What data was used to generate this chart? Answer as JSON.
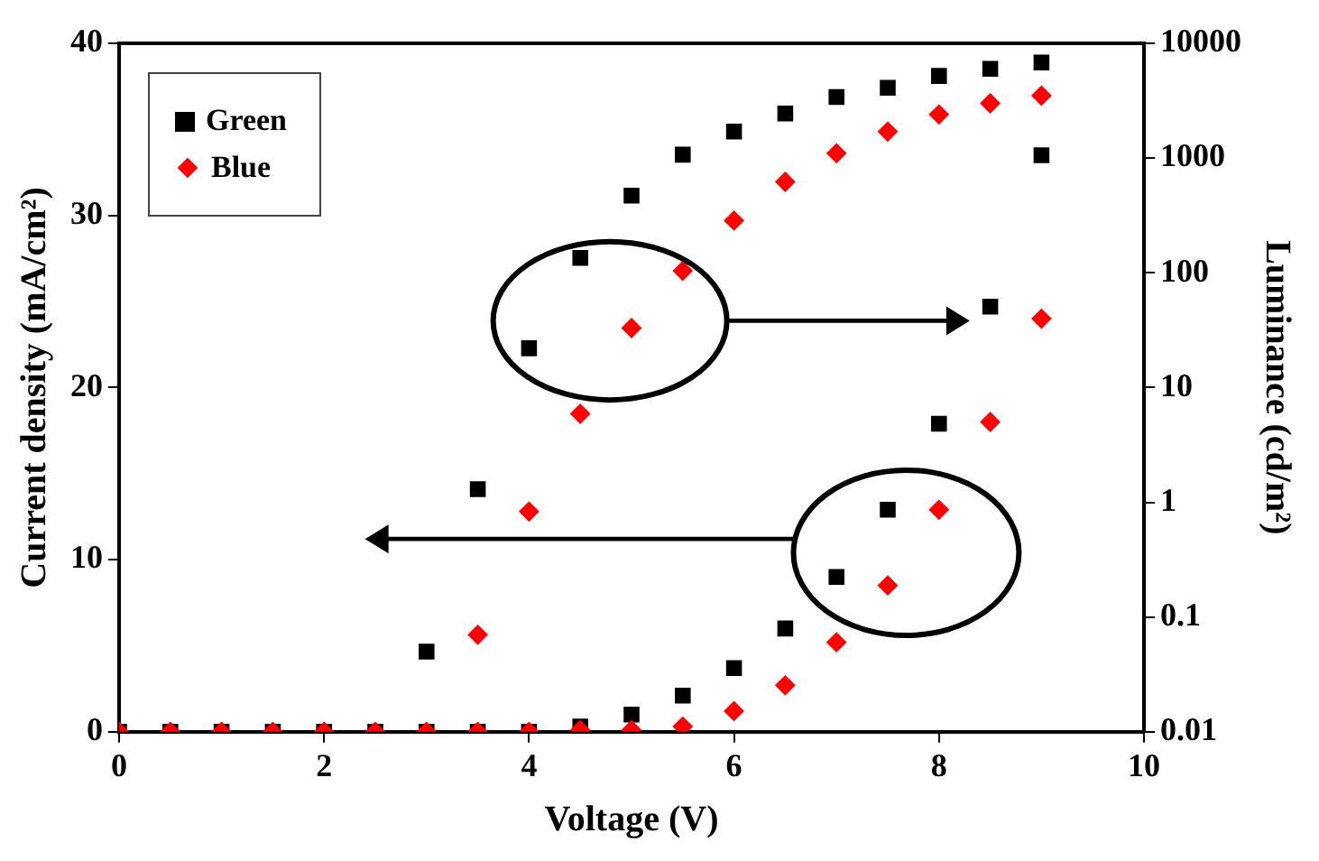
{
  "chart_data": {
    "type": "scatter",
    "xlabel": "Voltage (V)",
    "ylabel": "Current density (mA/cm²)",
    "y2label": "Luminance (cd/m²)",
    "xlim": [
      0,
      10
    ],
    "xticks": [
      0,
      2,
      4,
      6,
      8,
      10
    ],
    "ylim": [
      0,
      40
    ],
    "yticks": [
      0,
      10,
      20,
      30,
      40
    ],
    "y2lim": [
      0.01,
      10000
    ],
    "y2ticks": [
      0.01,
      0.1,
      1,
      10,
      100,
      1000,
      10000
    ],
    "log": "y2",
    "grid": false,
    "legend": "top left",
    "series": [
      {
        "name": "Green",
        "color": "#000000",
        "marker": "square",
        "x": [
          0,
          0.5,
          1,
          1.5,
          2,
          2.5,
          3,
          3.5,
          4,
          4.5,
          5,
          5.5,
          6,
          6.5,
          7,
          7.5,
          8,
          8.5,
          9
        ],
        "values": [
          0,
          0,
          0,
          0,
          0,
          0,
          0,
          0,
          0,
          0.3,
          1.0,
          2.1,
          3.7,
          6.0,
          9.0,
          12.9,
          17.9,
          24.7,
          33.5
        ]
      },
      {
        "name": "Blue",
        "color": "#ff0000",
        "marker": "diamond",
        "x": [
          0,
          0.5,
          1,
          1.5,
          2,
          2.5,
          3,
          3.5,
          4,
          4.5,
          5,
          5.5,
          6,
          6.5,
          7,
          7.5,
          8,
          8.5,
          9
        ],
        "values": [
          0,
          0,
          0,
          0,
          0,
          0,
          0,
          0,
          0,
          0.1,
          0.1,
          0.3,
          1.2,
          2.7,
          5.2,
          8.5,
          12.9,
          18.0,
          24.0
        ]
      },
      {
        "color": "#000000",
        "marker": "square",
        "axis": "y2",
        "x": [
          3,
          3.5,
          4,
          4.5,
          5,
          5.5,
          6,
          6.5,
          7,
          7.5,
          8,
          8.5,
          9
        ],
        "values": [
          0.05,
          1.3,
          22,
          135,
          470,
          1070,
          1700,
          2450,
          3400,
          4100,
          5200,
          6000,
          6800
        ]
      },
      {
        "color": "#ff0000",
        "marker": "diamond",
        "axis": "y2",
        "x": [
          3.5,
          4,
          4.5,
          5,
          5.5,
          6,
          6.5,
          7,
          7.5,
          8,
          8.5,
          9
        ],
        "values": [
          0.07,
          0.83,
          5.9,
          33,
          104,
          285,
          620,
          1100,
          1700,
          2400,
          3000,
          3500
        ]
      }
    ]
  }
}
